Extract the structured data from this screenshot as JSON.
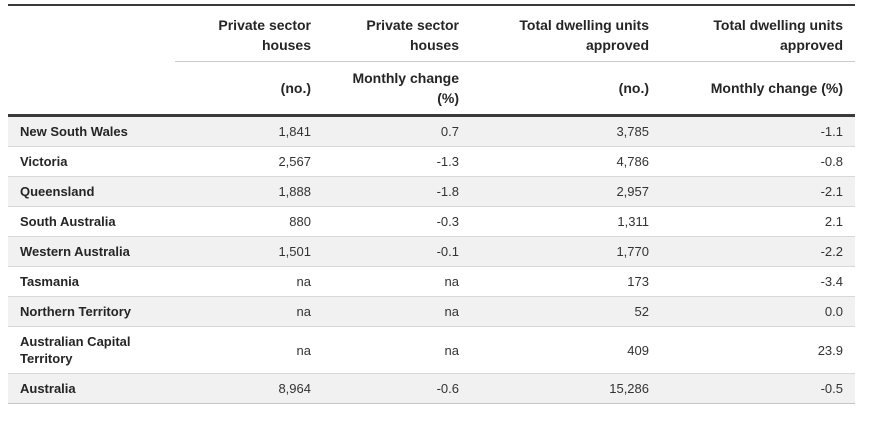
{
  "chart_data": {
    "type": "table",
    "column_groups": [
      "Private sector houses",
      "Private sector houses",
      "Total dwelling units approved",
      "Total dwelling units approved"
    ],
    "column_subs": [
      "(no.)",
      "Monthly change (%)",
      "(no.)",
      "Monthly change (%)"
    ],
    "rows": [
      {
        "region": "New South Wales",
        "values": [
          "1,841",
          "0.7",
          "3,785",
          "-1.1"
        ]
      },
      {
        "region": "Victoria",
        "values": [
          "2,567",
          "-1.3",
          "4,786",
          "-0.8"
        ]
      },
      {
        "region": "Queensland",
        "values": [
          "1,888",
          "-1.8",
          "2,957",
          "-2.1"
        ]
      },
      {
        "region": "South Australia",
        "values": [
          "880",
          "-0.3",
          "1,311",
          "2.1"
        ]
      },
      {
        "region": "Western Australia",
        "values": [
          "1,501",
          "-0.1",
          "1,770",
          "-2.2"
        ]
      },
      {
        "region": "Tasmania",
        "values": [
          "na",
          "na",
          "173",
          "-3.4"
        ]
      },
      {
        "region": "Northern Territory",
        "values": [
          "na",
          "na",
          "52",
          "0.0"
        ]
      },
      {
        "region": "Australian Capital Territory",
        "values": [
          "na",
          "na",
          "409",
          "23.9"
        ]
      },
      {
        "region": "Australia",
        "values": [
          "8,964",
          "-0.6",
          "15,286",
          "-0.5"
        ]
      }
    ]
  },
  "colors": {
    "stripe": "#f1f1f1",
    "dark_rule": "#3a3a3a",
    "light_rule": "#d8d8d8",
    "header_text": "#252525",
    "cell_text": "#333333"
  }
}
